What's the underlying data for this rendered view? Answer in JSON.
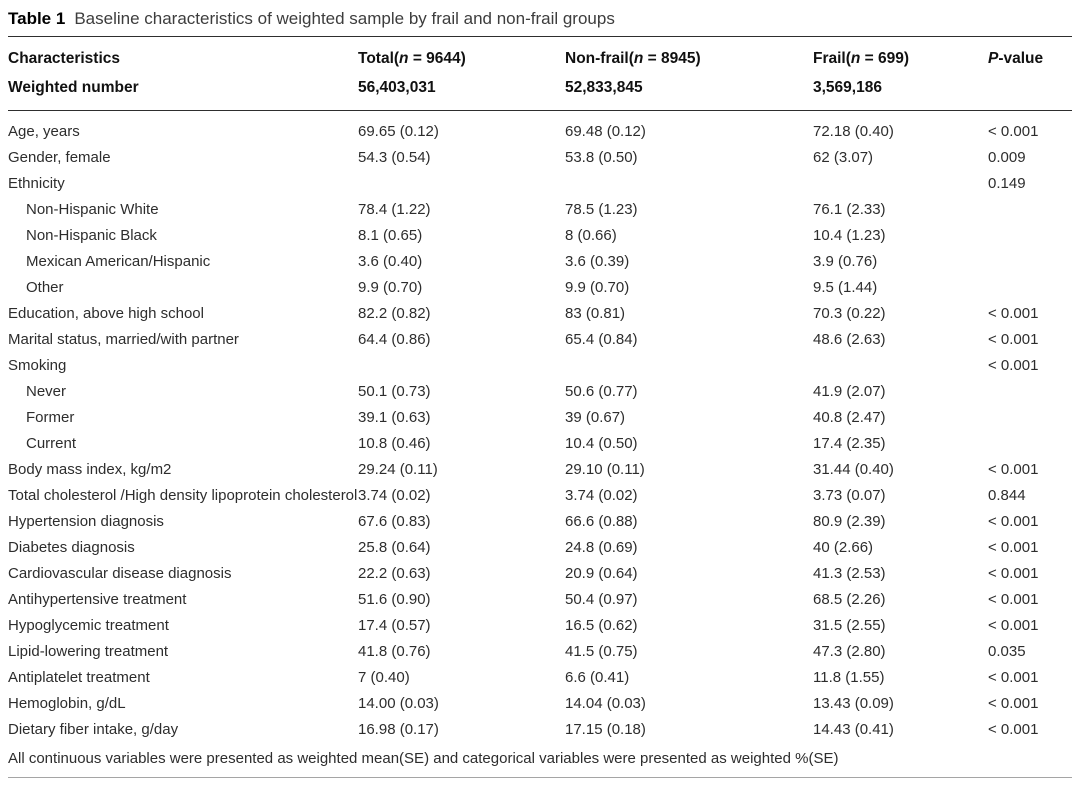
{
  "caption": {
    "label": "Table 1",
    "text": "Baseline characteristics of weighted sample by frail and non-frail groups"
  },
  "header": {
    "characteristics": "Characteristics",
    "weighted_number": "Weighted number",
    "group_columns": [
      {
        "pre": "Total(",
        "n_italic": "n",
        "post": " = 9644)",
        "weighted": "56,403,031"
      },
      {
        "pre": "Non-frail(",
        "n_italic": "n",
        "post": " = 8945)",
        "weighted": "52,833,845"
      },
      {
        "pre": "Frail(",
        "n_italic": "n",
        "post": " = 699)",
        "weighted": "3,569,186"
      }
    ],
    "pvalue": {
      "italic": "P",
      "post": "-value"
    }
  },
  "rows": [
    {
      "label": "Age, years",
      "indent": false,
      "total": "69.65 (0.12)",
      "nonfrail": "69.48 (0.12)",
      "frail": "72.18 (0.40)",
      "p": "< 0.001"
    },
    {
      "label": "Gender, female",
      "indent": false,
      "total": "54.3 (0.54)",
      "nonfrail": "53.8 (0.50)",
      "frail": "62 (3.07)",
      "p": "0.009"
    },
    {
      "label": "Ethnicity",
      "indent": false,
      "total": "",
      "nonfrail": "",
      "frail": "",
      "p": "0.149"
    },
    {
      "label": "Non-Hispanic White",
      "indent": true,
      "total": "78.4 (1.22)",
      "nonfrail": "78.5 (1.23)",
      "frail": "76.1 (2.33)",
      "p": ""
    },
    {
      "label": "Non-Hispanic Black",
      "indent": true,
      "total": "8.1 (0.65)",
      "nonfrail": "8 (0.66)",
      "frail": "10.4 (1.23)",
      "p": ""
    },
    {
      "label": "Mexican American/Hispanic",
      "indent": true,
      "total": "3.6 (0.40)",
      "nonfrail": "3.6 (0.39)",
      "frail": "3.9 (0.76)",
      "p": ""
    },
    {
      "label": "Other",
      "indent": true,
      "total": "9.9 (0.70)",
      "nonfrail": "9.9 (0.70)",
      "frail": "9.5 (1.44)",
      "p": ""
    },
    {
      "label": "Education, above high school",
      "indent": false,
      "total": "82.2 (0.82)",
      "nonfrail": "83 (0.81)",
      "frail": "70.3 (0.22)",
      "p": "< 0.001"
    },
    {
      "label": "Marital status, married/with partner",
      "indent": false,
      "total": "64.4 (0.86)",
      "nonfrail": "65.4 (0.84)",
      "frail": "48.6 (2.63)",
      "p": "< 0.001"
    },
    {
      "label": "Smoking",
      "indent": false,
      "total": "",
      "nonfrail": "",
      "frail": "",
      "p": "< 0.001"
    },
    {
      "label": "Never",
      "indent": true,
      "total": "50.1 (0.73)",
      "nonfrail": "50.6 (0.77)",
      "frail": "41.9 (2.07)",
      "p": ""
    },
    {
      "label": "Former",
      "indent": true,
      "total": "39.1 (0.63)",
      "nonfrail": "39 (0.67)",
      "frail": "40.8 (2.47)",
      "p": ""
    },
    {
      "label": "Current",
      "indent": true,
      "total": "10.8 (0.46)",
      "nonfrail": "10.4 (0.50)",
      "frail": "17.4 (2.35)",
      "p": ""
    },
    {
      "label": "Body mass index, kg/m2",
      "indent": false,
      "total": "29.24 (0.11)",
      "nonfrail": "29.10 (0.11)",
      "frail": "31.44 (0.40)",
      "p": "< 0.001"
    },
    {
      "label": "Total cholesterol /High density lipoprotein cholesterol",
      "indent": false,
      "total": "3.74 (0.02)",
      "nonfrail": "3.74 (0.02)",
      "frail": "3.73 (0.07)",
      "p": "0.844"
    },
    {
      "label": "Hypertension diagnosis",
      "indent": false,
      "total": "67.6 (0.83)",
      "nonfrail": "66.6 (0.88)",
      "frail": "80.9 (2.39)",
      "p": "< 0.001"
    },
    {
      "label": "Diabetes diagnosis",
      "indent": false,
      "total": "25.8 (0.64)",
      "nonfrail": "24.8 (0.69)",
      "frail": "40 (2.66)",
      "p": "< 0.001"
    },
    {
      "label": "Cardiovascular disease diagnosis",
      "indent": false,
      "total": "22.2 (0.63)",
      "nonfrail": "20.9 (0.64)",
      "frail": "41.3 (2.53)",
      "p": "< 0.001"
    },
    {
      "label": "Antihypertensive treatment",
      "indent": false,
      "total": "51.6 (0.90)",
      "nonfrail": "50.4 (0.97)",
      "frail": "68.5 (2.26)",
      "p": "< 0.001"
    },
    {
      "label": "Hypoglycemic treatment",
      "indent": false,
      "total": "17.4 (0.57)",
      "nonfrail": "16.5 (0.62)",
      "frail": "31.5 (2.55)",
      "p": "< 0.001"
    },
    {
      "label": "Lipid-lowering treatment",
      "indent": false,
      "total": "41.8 (0.76)",
      "nonfrail": "41.5 (0.75)",
      "frail": "47.3 (2.80)",
      "p": "0.035"
    },
    {
      "label": "Antiplatelet treatment",
      "indent": false,
      "total": "7 (0.40)",
      "nonfrail": "6.6 (0.41)",
      "frail": "11.8 (1.55)",
      "p": "< 0.001"
    },
    {
      "label": "Hemoglobin, g/dL",
      "indent": false,
      "total": "14.00 (0.03)",
      "nonfrail": "14.04 (0.03)",
      "frail": "13.43 (0.09)",
      "p": "< 0.001"
    },
    {
      "label": "Dietary fiber intake, g/day",
      "indent": false,
      "total": "16.98 (0.17)",
      "nonfrail": "17.15 (0.18)",
      "frail": "14.43 (0.41)",
      "p": "< 0.001"
    }
  ],
  "footnote": "All continuous variables were presented as weighted mean(SE) and categorical variables were presented as weighted %(SE)",
  "colors": {
    "rule_dark": "#2e2e2e",
    "rule_light": "#a5a5a5",
    "text": "#2d2d2d"
  }
}
